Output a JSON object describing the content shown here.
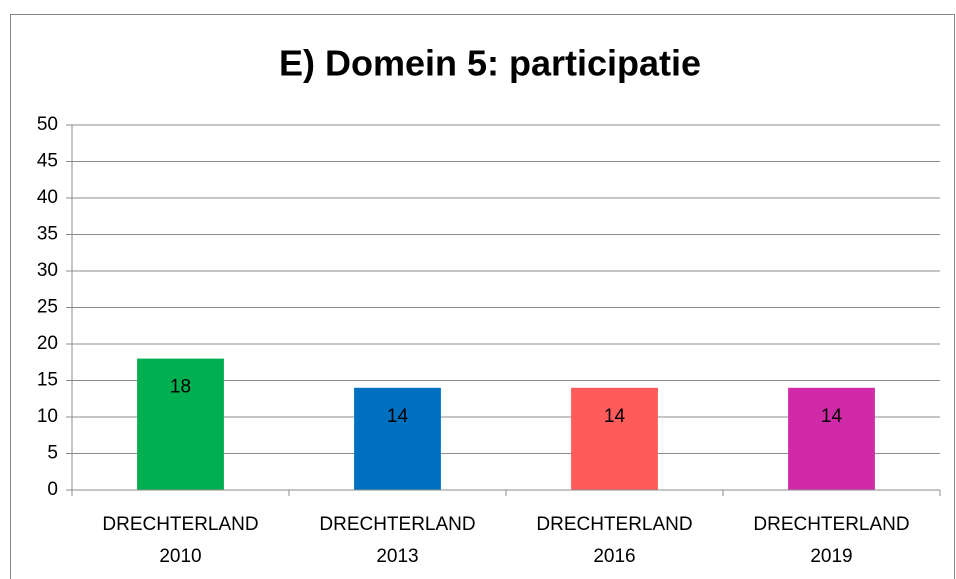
{
  "chart_data": {
    "type": "bar",
    "title": "E) Domein 5: participatie",
    "categories": [
      [
        "DRECHTERLAND",
        "2010"
      ],
      [
        "DRECHTERLAND",
        "2013"
      ],
      [
        "DRECHTERLAND",
        "2016"
      ],
      [
        "DRECHTERLAND",
        "2019"
      ]
    ],
    "values": [
      18,
      14,
      14,
      14
    ],
    "colors": [
      "#00b050",
      "#0070c0",
      "#ff5b5b",
      "#d02aa8"
    ],
    "ylim": [
      0,
      50
    ],
    "yticks": [
      0,
      5,
      10,
      15,
      20,
      25,
      30,
      35,
      40,
      45,
      50
    ],
    "grid": true
  }
}
